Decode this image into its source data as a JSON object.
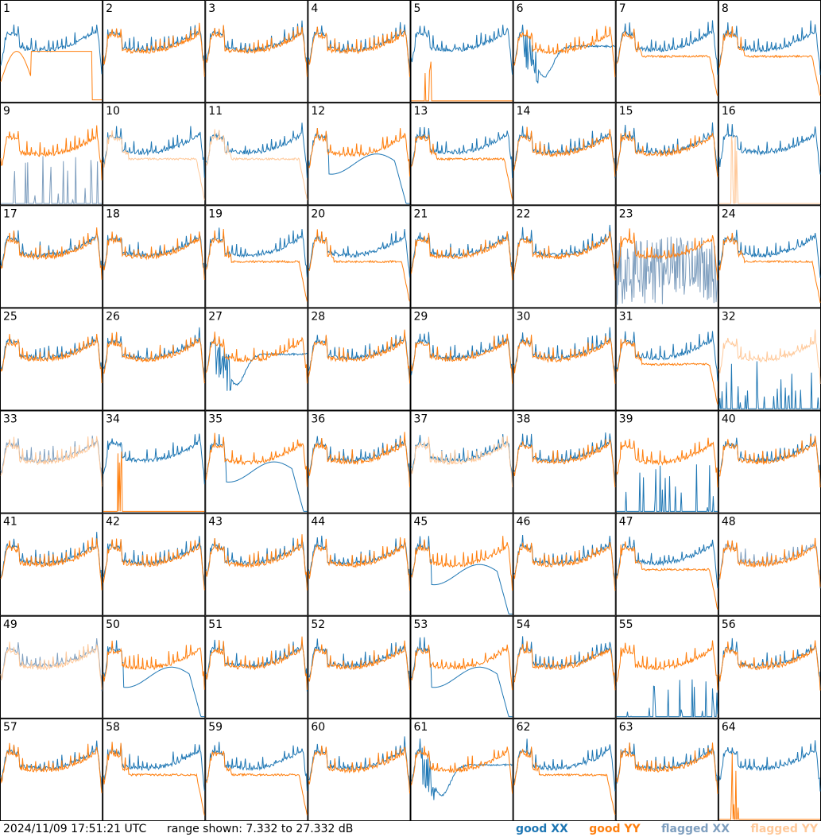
{
  "footer": {
    "timestamp": "2024/11/09 17:51:21 UTC",
    "range_text": "range shown: 7.332 to 27.332 dB"
  },
  "legend": {
    "good_xx": "good XX",
    "good_yy": "good YY",
    "flagged_xx": "flagged XX",
    "flagged_yy": "flagged YY"
  },
  "colors": {
    "good_xx": "#1f77b4",
    "good_yy": "#ff7f0e",
    "flagged_xx": "#7f9fbf",
    "flagged_yy": "#ffc99a"
  },
  "chart_data": {
    "type": "line",
    "ylim": [
      7.332,
      27.332
    ],
    "panels": [
      {
        "label": "1",
        "xx": "good",
        "yy": "good",
        "profile": "dropyy"
      },
      {
        "label": "2",
        "xx": "good",
        "yy": "good",
        "profile": "normal"
      },
      {
        "label": "3",
        "xx": "good",
        "yy": "good",
        "profile": "normal"
      },
      {
        "label": "4",
        "xx": "good",
        "yy": "good",
        "profile": "normal"
      },
      {
        "label": "5",
        "xx": "good",
        "yy": "good",
        "profile": "flatyy"
      },
      {
        "label": "6",
        "xx": "good",
        "yy": "good",
        "profile": "dipxx"
      },
      {
        "label": "7",
        "xx": "good",
        "yy": "good",
        "profile": "lowyy"
      },
      {
        "label": "8",
        "xx": "good",
        "yy": "good",
        "profile": "lowyy"
      },
      {
        "label": "9",
        "xx": "flagged",
        "yy": "good",
        "profile": "flatxx"
      },
      {
        "label": "10",
        "xx": "good",
        "yy": "flagged",
        "profile": "lowyy"
      },
      {
        "label": "11",
        "xx": "good",
        "yy": "flagged",
        "profile": "lowyy"
      },
      {
        "label": "12",
        "xx": "good",
        "yy": "good",
        "profile": "dropxx"
      },
      {
        "label": "13",
        "xx": "good",
        "yy": "good",
        "profile": "lowyy"
      },
      {
        "label": "14",
        "xx": "good",
        "yy": "good",
        "profile": "normal"
      },
      {
        "label": "15",
        "xx": "good",
        "yy": "good",
        "profile": "normal"
      },
      {
        "label": "16",
        "xx": "good",
        "yy": "flagged",
        "profile": "flatyy"
      },
      {
        "label": "17",
        "xx": "good",
        "yy": "good",
        "profile": "normal"
      },
      {
        "label": "18",
        "xx": "good",
        "yy": "good",
        "profile": "normal"
      },
      {
        "label": "19",
        "xx": "good",
        "yy": "good",
        "profile": "lowyy"
      },
      {
        "label": "20",
        "xx": "good",
        "yy": "good",
        "profile": "lowyy"
      },
      {
        "label": "21",
        "xx": "good",
        "yy": "good",
        "profile": "normal"
      },
      {
        "label": "22",
        "xx": "good",
        "yy": "good",
        "profile": "normal"
      },
      {
        "label": "23",
        "xx": "flagged",
        "yy": "good",
        "profile": "noisyxx"
      },
      {
        "label": "24",
        "xx": "good",
        "yy": "good",
        "profile": "lowyy"
      },
      {
        "label": "25",
        "xx": "good",
        "yy": "good",
        "profile": "normal"
      },
      {
        "label": "26",
        "xx": "good",
        "yy": "good",
        "profile": "normal"
      },
      {
        "label": "27",
        "xx": "good",
        "yy": "good",
        "profile": "dipxx"
      },
      {
        "label": "28",
        "xx": "good",
        "yy": "good",
        "profile": "normal"
      },
      {
        "label": "29",
        "xx": "good",
        "yy": "good",
        "profile": "normal"
      },
      {
        "label": "30",
        "xx": "good",
        "yy": "good",
        "profile": "normal"
      },
      {
        "label": "31",
        "xx": "good",
        "yy": "good",
        "profile": "lowyy"
      },
      {
        "label": "32",
        "xx": "good",
        "yy": "flagged",
        "profile": "flatxx"
      },
      {
        "label": "33",
        "xx": "flagged",
        "yy": "flagged",
        "profile": "normal"
      },
      {
        "label": "34",
        "xx": "good",
        "yy": "good",
        "profile": "flatyy"
      },
      {
        "label": "35",
        "xx": "good",
        "yy": "good",
        "profile": "dropxx"
      },
      {
        "label": "36",
        "xx": "good",
        "yy": "good",
        "profile": "normal"
      },
      {
        "label": "37",
        "xx": "good",
        "yy": "flagged",
        "profile": "normal"
      },
      {
        "label": "38",
        "xx": "good",
        "yy": "good",
        "profile": "normal"
      },
      {
        "label": "39",
        "xx": "good",
        "yy": "good",
        "profile": "flatxx"
      },
      {
        "label": "40",
        "xx": "good",
        "yy": "good",
        "profile": "normal"
      },
      {
        "label": "41",
        "xx": "good",
        "yy": "good",
        "profile": "normal"
      },
      {
        "label": "42",
        "xx": "good",
        "yy": "good",
        "profile": "normal"
      },
      {
        "label": "43",
        "xx": "good",
        "yy": "good",
        "profile": "normal"
      },
      {
        "label": "44",
        "xx": "good",
        "yy": "good",
        "profile": "normal"
      },
      {
        "label": "45",
        "xx": "good",
        "yy": "good",
        "profile": "dropxx"
      },
      {
        "label": "46",
        "xx": "good",
        "yy": "good",
        "profile": "normal"
      },
      {
        "label": "47",
        "xx": "good",
        "yy": "good",
        "profile": "lowyy"
      },
      {
        "label": "48",
        "xx": "flagged",
        "yy": "good",
        "profile": "normal"
      },
      {
        "label": "49",
        "xx": "flagged",
        "yy": "flagged",
        "profile": "normal"
      },
      {
        "label": "50",
        "xx": "good",
        "yy": "good",
        "profile": "dropxx"
      },
      {
        "label": "51",
        "xx": "good",
        "yy": "good",
        "profile": "normal"
      },
      {
        "label": "52",
        "xx": "good",
        "yy": "good",
        "profile": "normal"
      },
      {
        "label": "53",
        "xx": "good",
        "yy": "good",
        "profile": "dropxx"
      },
      {
        "label": "54",
        "xx": "good",
        "yy": "good",
        "profile": "normal"
      },
      {
        "label": "55",
        "xx": "good",
        "yy": "good",
        "profile": "flatxx"
      },
      {
        "label": "56",
        "xx": "good",
        "yy": "good",
        "profile": "normal"
      },
      {
        "label": "57",
        "xx": "good",
        "yy": "good",
        "profile": "normal"
      },
      {
        "label": "58",
        "xx": "good",
        "yy": "good",
        "profile": "lowyy"
      },
      {
        "label": "59",
        "xx": "good",
        "yy": "good",
        "profile": "lowyy"
      },
      {
        "label": "60",
        "xx": "good",
        "yy": "good",
        "profile": "normal"
      },
      {
        "label": "61",
        "xx": "good",
        "yy": "good",
        "profile": "dipxx"
      },
      {
        "label": "62",
        "xx": "good",
        "yy": "good",
        "profile": "lowyy"
      },
      {
        "label": "63",
        "xx": "good",
        "yy": "good",
        "profile": "normal"
      },
      {
        "label": "64",
        "xx": "good",
        "yy": "good",
        "profile": "flatyy"
      }
    ]
  }
}
